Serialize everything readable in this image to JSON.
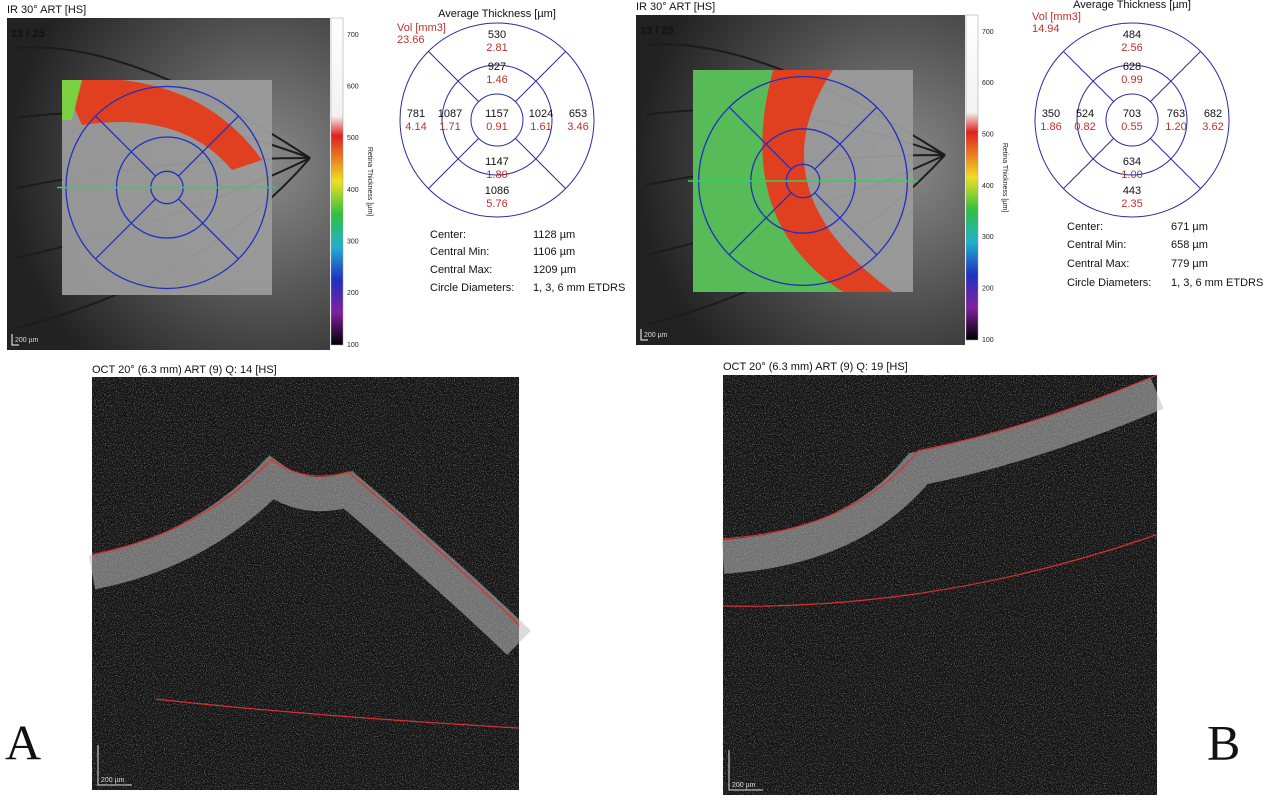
{
  "panels": [
    {
      "letter": "A",
      "fundus": {
        "label": "IR 30° ART [HS]",
        "counter": "13 / 25",
        "scale": "200 µm",
        "colorbar": {
          "title": "Retina Thickness [µm]",
          "ticks": [
            "700",
            "600",
            "500",
            "400",
            "300",
            "200",
            "100"
          ]
        }
      },
      "grid": {
        "title": "Average Thickness [µm]",
        "vol_label": "Vol [mm3]",
        "vol_total": "23.66",
        "sectors": {
          "outer_top": {
            "thickness": "530",
            "volume": "2.81"
          },
          "inner_top": {
            "thickness": "927",
            "volume": "1.46"
          },
          "outer_left": {
            "thickness": "781",
            "volume": "4.14"
          },
          "inner_left": {
            "thickness": "1087",
            "volume": "1.71"
          },
          "center": {
            "thickness": "1157",
            "volume": "0.91"
          },
          "inner_right": {
            "thickness": "1024",
            "volume": "1.61"
          },
          "outer_right": {
            "thickness": "653",
            "volume": "3.46"
          },
          "inner_bottom": {
            "thickness": "1147",
            "volume": "1.80"
          },
          "outer_bottom": {
            "thickness": "1086",
            "volume": "5.76"
          }
        }
      },
      "stats": [
        {
          "label": "Center:",
          "value": "1128 µm"
        },
        {
          "label": "Central Min:",
          "value": "1106 µm"
        },
        {
          "label": "Central Max:",
          "value": "1209 µm"
        },
        {
          "label": "Circle Diameters:",
          "value": "1, 3, 6 mm ETDRS"
        }
      ],
      "oct": {
        "header": "OCT 20° (6.3 mm) ART (9) Q: 14 [HS]",
        "scale": "200 µm"
      }
    },
    {
      "letter": "B",
      "fundus": {
        "label": "IR 30° ART [HS]",
        "counter": "13 / 25",
        "scale": "200 µm",
        "colorbar": {
          "title": "Retina Thickness [µm]",
          "ticks": [
            "700",
            "600",
            "500",
            "400",
            "300",
            "200",
            "100"
          ]
        }
      },
      "grid": {
        "title": "Average Thickness [µm]",
        "vol_label": "Vol [mm3]",
        "vol_total": "14.94",
        "sectors": {
          "outer_top": {
            "thickness": "484",
            "volume": "2.56"
          },
          "inner_top": {
            "thickness": "628",
            "volume": "0.99"
          },
          "outer_left": {
            "thickness": "350",
            "volume": "1.86"
          },
          "inner_left": {
            "thickness": "524",
            "volume": "0.82"
          },
          "center": {
            "thickness": "703",
            "volume": "0.55"
          },
          "inner_right": {
            "thickness": "763",
            "volume": "1.20"
          },
          "outer_right": {
            "thickness": "682",
            "volume": "3.62"
          },
          "inner_bottom": {
            "thickness": "634",
            "volume": "1.00"
          },
          "outer_bottom": {
            "thickness": "443",
            "volume": "2.35"
          }
        }
      },
      "stats": [
        {
          "label": "Center:",
          "value": "671 µm"
        },
        {
          "label": "Central Min:",
          "value": "658 µm"
        },
        {
          "label": "Central Max:",
          "value": "779 µm"
        },
        {
          "label": "Circle Diameters:",
          "value": "1, 3, 6 mm ETDRS"
        }
      ],
      "oct": {
        "header": "OCT 20° (6.3 mm) ART (9) Q: 19 [HS]",
        "scale": "200 µm"
      }
    }
  ]
}
